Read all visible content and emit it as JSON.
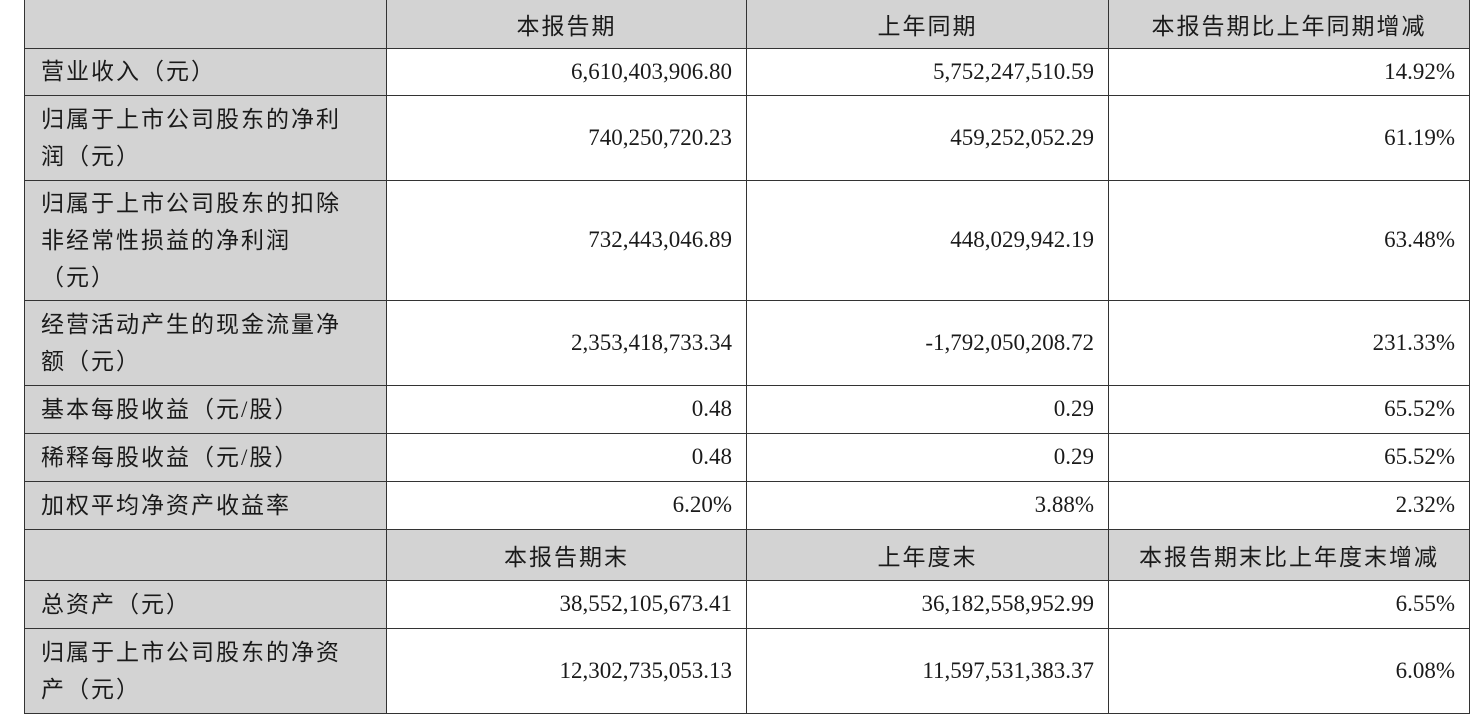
{
  "header1": {
    "c0": "",
    "c1": "本报告期",
    "c2": "上年同期",
    "c3": "本报告期比上年同期增减"
  },
  "rows1": [
    {
      "label": "营业收入（元）",
      "current": "6,610,403,906.80",
      "prior": "5,752,247,510.59",
      "change": "14.92%"
    },
    {
      "label": "归属于上市公司股东的净利\n润（元）",
      "current": "740,250,720.23",
      "prior": "459,252,052.29",
      "change": "61.19%"
    },
    {
      "label": "归属于上市公司股东的扣除\n非经常性损益的净利润\n（元）",
      "current": "732,443,046.89",
      "prior": "448,029,942.19",
      "change": "63.48%"
    },
    {
      "label": "经营活动产生的现金流量净\n额（元）",
      "current": "2,353,418,733.34",
      "prior": "-1,792,050,208.72",
      "change": "231.33%"
    },
    {
      "label": "基本每股收益（元/股）",
      "current": "0.48",
      "prior": "0.29",
      "change": "65.52%"
    },
    {
      "label": "稀释每股收益（元/股）",
      "current": "0.48",
      "prior": "0.29",
      "change": "65.52%"
    },
    {
      "label": "加权平均净资产收益率",
      "current": "6.20%",
      "prior": "3.88%",
      "change": "2.32%"
    }
  ],
  "header2": {
    "c0": "",
    "c1": "本报告期末",
    "c2": "上年度末",
    "c3": "本报告期末比上年度末增减"
  },
  "rows2": [
    {
      "label": "总资产（元）",
      "current": "38,552,105,673.41",
      "prior": "36,182,558,952.99",
      "change": "6.55%"
    },
    {
      "label": "归属于上市公司股东的净资\n产（元）",
      "current": "12,302,735,053.13",
      "prior": "11,597,531,383.37",
      "change": "6.08%"
    }
  ]
}
